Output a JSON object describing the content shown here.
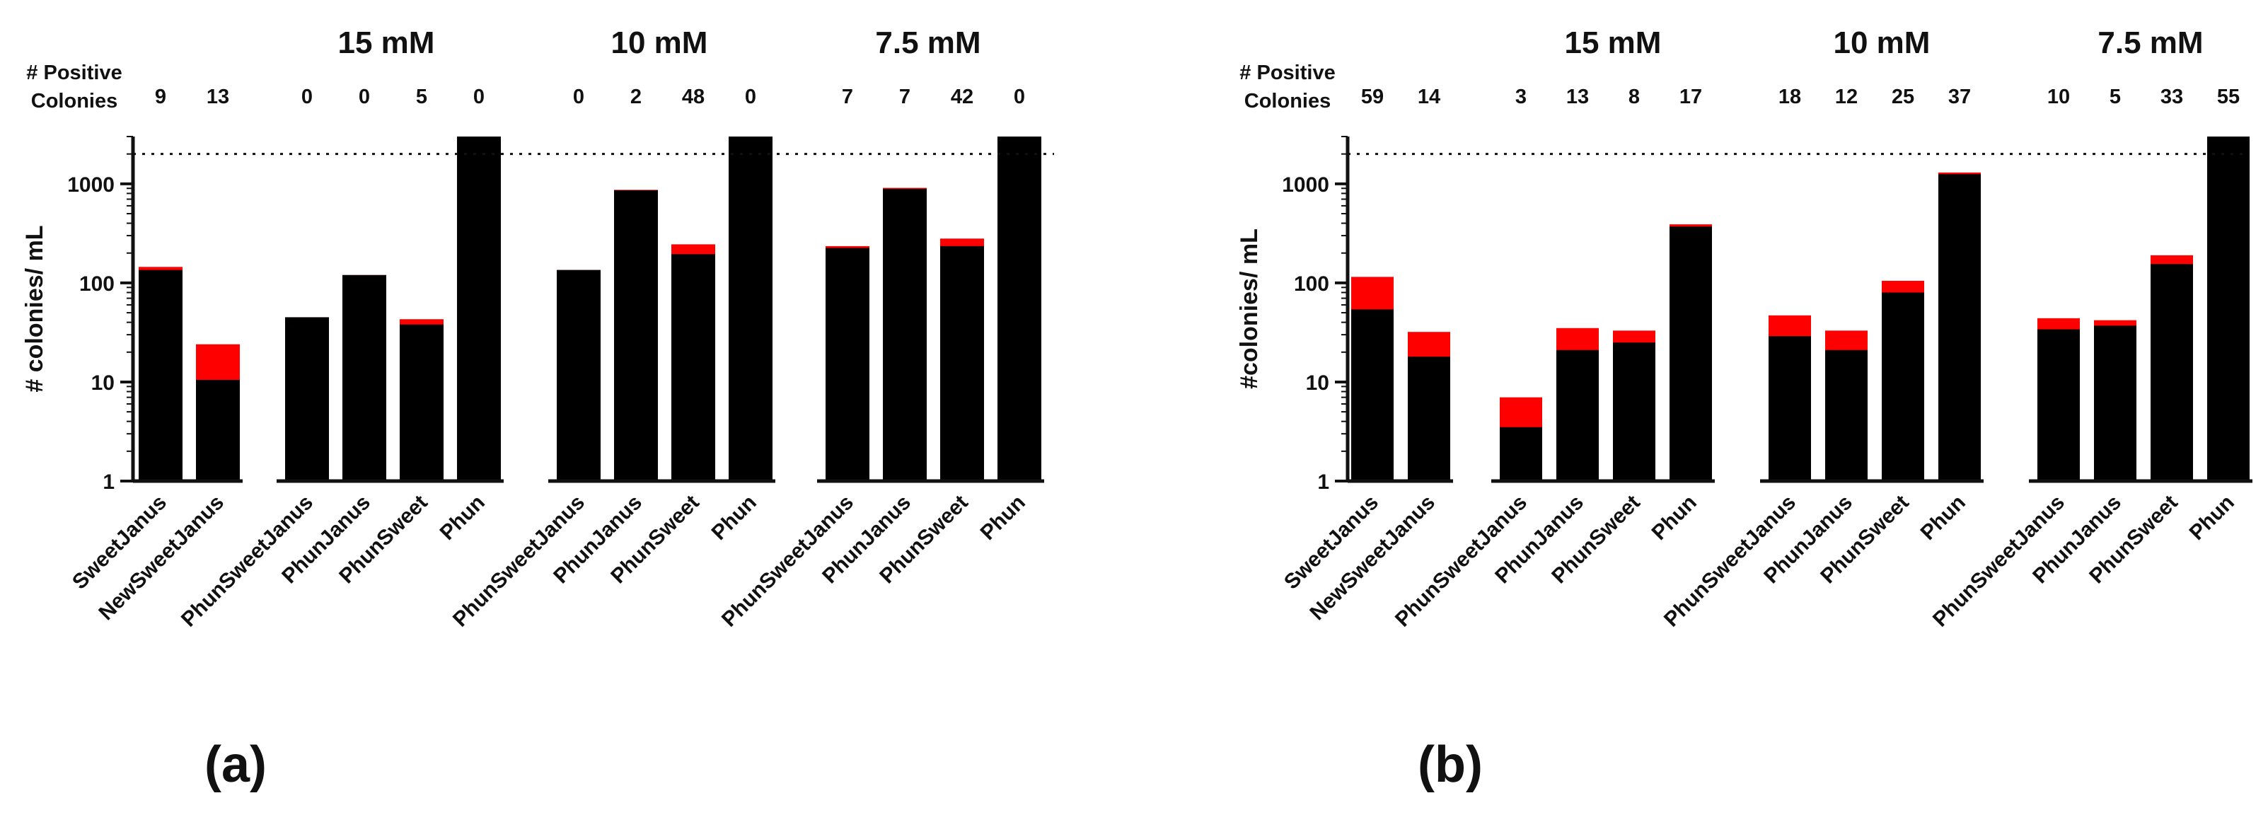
{
  "chart_data": [
    {
      "type": "bar",
      "panel_label": "(a)",
      "header_label_line1": "# Positive",
      "header_label_line2": "Colonies",
      "ylabel": "# colonies/ mL",
      "yscale": "log",
      "ylim": [
        1,
        3000
      ],
      "yticks": [
        "1",
        "10",
        "100",
        "1000"
      ],
      "threshold": 2000,
      "groups": [
        {
          "label": "",
          "categories": [
            "SweetJanus",
            "NewSweetJanus"
          ]
        },
        {
          "label": "15 mM",
          "categories": [
            "PhunSweetJanus",
            "PhunJanus",
            "PhunSweet",
            "Phun"
          ]
        },
        {
          "label": "10 mM",
          "categories": [
            "PhunSweetJanus",
            "PhunJanus",
            "PhunSweet",
            "Phun"
          ]
        },
        {
          "label": "7.5 mM",
          "categories": [
            "PhunSweetJanus",
            "PhunJanus",
            "PhunSweet",
            "Phun"
          ]
        }
      ],
      "positive_colonies": [
        "9",
        "13",
        "0",
        "0",
        "5",
        "0",
        "0",
        "2",
        "48",
        "0",
        "7",
        "7",
        "42",
        "0"
      ],
      "series": [
        {
          "name": "total",
          "color": "#ff0000",
          "values": [
            145,
            24,
            45,
            120,
            43,
            3000,
            135,
            870,
            245,
            3000,
            235,
            910,
            280,
            3000
          ]
        },
        {
          "name": "non-positive",
          "color": "#000000",
          "values": [
            135,
            10.5,
            45,
            120,
            38,
            3000,
            135,
            860,
            195,
            3000,
            225,
            890,
            235,
            3000
          ]
        }
      ]
    },
    {
      "type": "bar",
      "panel_label": "(b)",
      "header_label_line1": "# Positive",
      "header_label_line2": "Colonies",
      "ylabel": "#colonies/ mL",
      "yscale": "log",
      "ylim": [
        1,
        3000
      ],
      "yticks": [
        "1",
        "10",
        "100",
        "1000"
      ],
      "threshold": 2000,
      "groups": [
        {
          "label": "",
          "categories": [
            "SweetJanus",
            "NewSweetJanus"
          ]
        },
        {
          "label": "15 mM",
          "categories": [
            "PhunSweetJanus",
            "PhunJanus",
            "PhunSweet",
            "Phun"
          ]
        },
        {
          "label": "10 mM",
          "categories": [
            "PhunSweetJanus",
            "PhunJanus",
            "PhunSweet",
            "Phun"
          ]
        },
        {
          "label": "7.5 mM",
          "categories": [
            "PhunSweetJanus",
            "PhunJanus",
            "PhunSweet",
            "Phun"
          ]
        }
      ],
      "positive_colonies": [
        "59",
        "14",
        "3",
        "13",
        "8",
        "17",
        "18",
        "12",
        "25",
        "37",
        "10",
        "5",
        "33",
        "55"
      ],
      "series": [
        {
          "name": "total",
          "color": "#ff0000",
          "values": [
            115,
            32,
            7,
            35,
            33,
            390,
            47,
            33,
            105,
            1300,
            44,
            42,
            190,
            3000
          ]
        },
        {
          "name": "non-positive",
          "color": "#000000",
          "values": [
            54,
            18,
            3.5,
            21,
            25,
            370,
            29,
            21,
            80,
            1250,
            34,
            37,
            155,
            3000
          ]
        }
      ]
    }
  ]
}
